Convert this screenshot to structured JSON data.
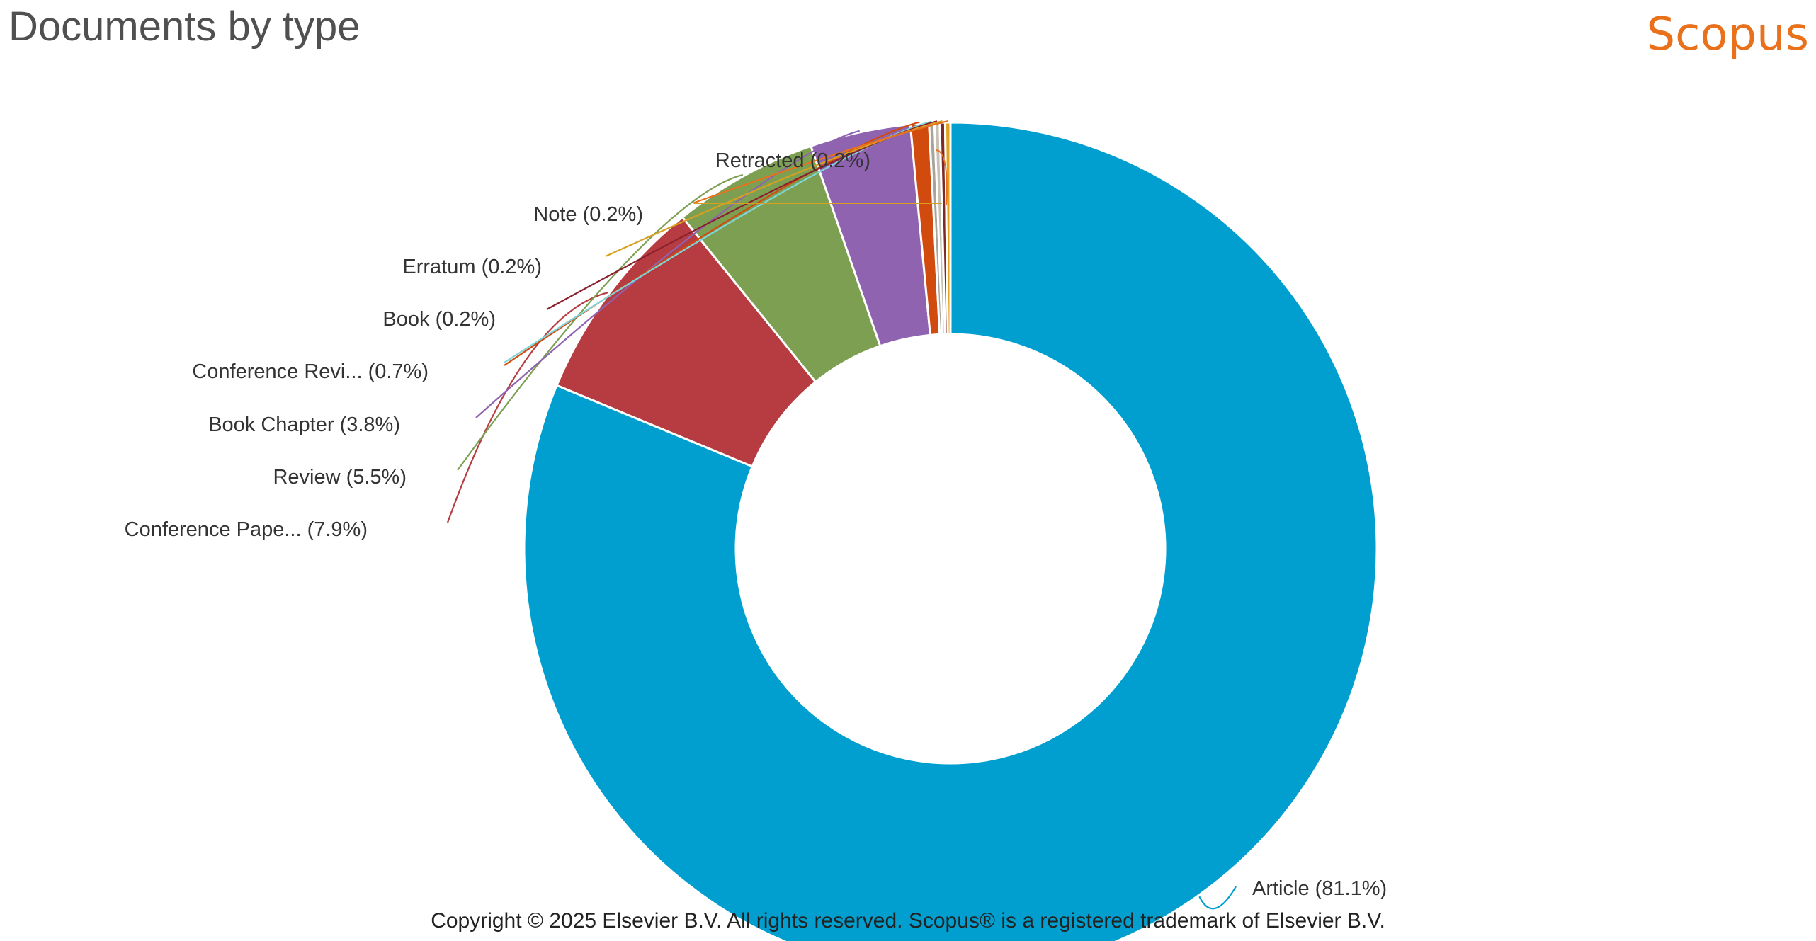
{
  "header": {
    "title": "Documents by type",
    "brand": "Scopus"
  },
  "footer": {
    "copyright": "Copyright © 2025 Elsevier B.V. All rights reserved. Scopus® is a registered trademark of Elsevier B.V."
  },
  "chart_data": {
    "type": "pie",
    "title": "Documents by type",
    "donut": true,
    "categories": [
      "Article",
      "Conference Pape...",
      "Review",
      "Book Chapter",
      "Conference Revi...",
      "Book",
      "Erratum",
      "Note",
      "Retracted"
    ],
    "values": [
      81.1,
      7.9,
      5.5,
      3.8,
      0.7,
      0.2,
      0.2,
      0.2,
      0.2
    ],
    "labels": [
      "Article (81.1%)",
      "Conference Pape... (7.9%)",
      "Review (5.5%)",
      "Book Chapter (3.8%)",
      "Conference Revi... (0.7%)",
      "Book (0.2%)",
      "Erratum (0.2%)",
      "Note (0.2%)",
      "Retracted (0.2%)"
    ],
    "colors": [
      "#009fcf",
      "#b63c41",
      "#7d9f52",
      "#8f63b0",
      "#d14a0e",
      "#a8a39c",
      "#c7c0b4",
      "#7f2a2a",
      "#e0a422"
    ],
    "leader_colors": [
      "#009fcf",
      "#b63c41",
      "#7d9f52",
      "#8f63b0",
      "#d14a0e",
      "#7fd6da",
      "#8a1f2e",
      "#d8a020",
      "#e9711c"
    ],
    "legend": "none"
  }
}
